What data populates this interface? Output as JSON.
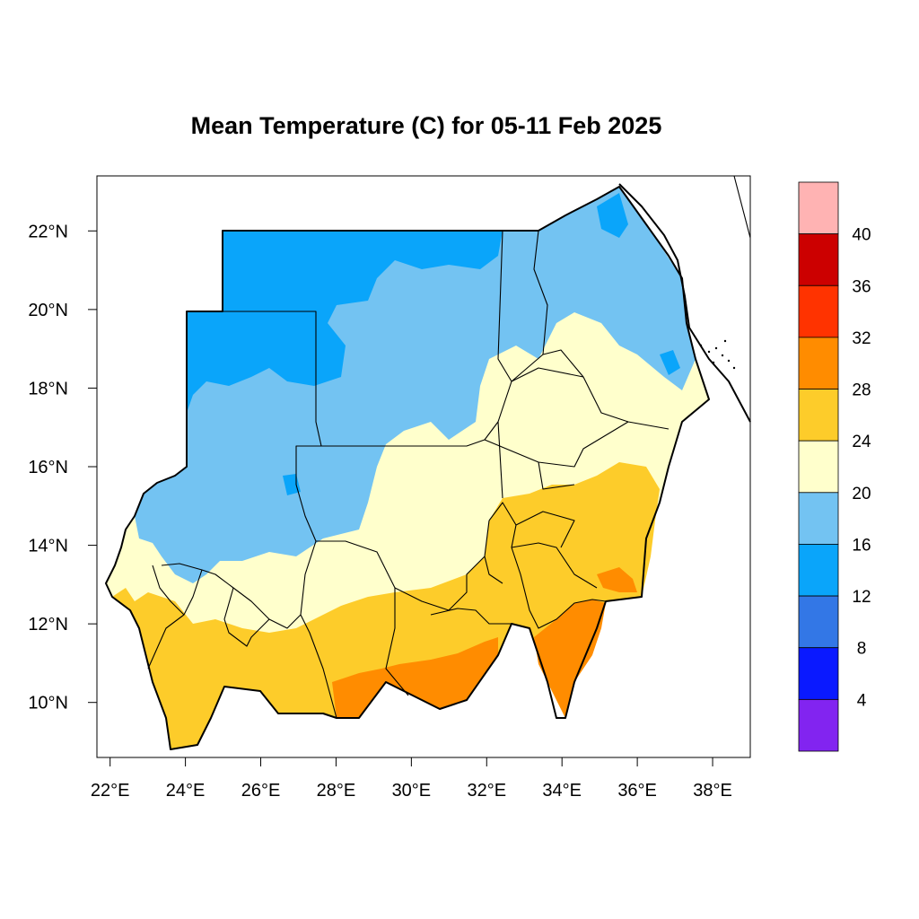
{
  "map": {
    "title": "Mean Temperature (C) for 05-11 Feb 2025",
    "x_ticks": [
      "22°E",
      "24°E",
      "26°E",
      "28°E",
      "30°E",
      "32°E",
      "34°E",
      "36°E",
      "38°E"
    ],
    "y_ticks": [
      "22°N",
      "20°N",
      "18°N",
      "16°N",
      "14°N",
      "12°N",
      "10°N"
    ],
    "lon_range": [
      21.65,
      39.0
    ],
    "lat_range": [
      8.6,
      23.4
    ]
  },
  "legend": {
    "labels": [
      "40",
      "36",
      "32",
      "28",
      "24",
      "20",
      "16",
      "12",
      "8",
      "4"
    ],
    "colors": [
      "#ffb3b3",
      "#cc0000",
      "#ff3300",
      "#ff8c00",
      "#fdcc2a",
      "#ffffcc",
      "#73c3f2",
      "#0aa5fa",
      "#3377e6",
      "#0a19ff",
      "#8224f0"
    ]
  }
}
